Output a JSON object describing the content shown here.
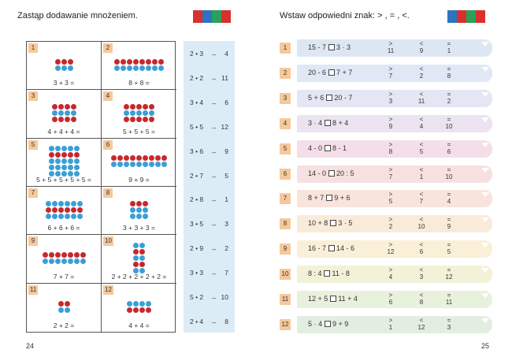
{
  "left_page": {
    "instruction": "Zastąp dodawanie mnożeniem.",
    "page_number": "24",
    "cells": [
      {
        "num": "1",
        "expr": "3 + 3 =",
        "rows": [
          "rrr",
          "bbb"
        ]
      },
      {
        "num": "2",
        "expr": "8 + 8 =",
        "rows": [
          "rrrrrrrr",
          "bbbbbbbb"
        ]
      },
      {
        "num": "3",
        "expr": "4 + 4 + 4 =",
        "rows": [
          "rrrr",
          "bbbb",
          "rrrr"
        ]
      },
      {
        "num": "4",
        "expr": "5 + 5 + 5 =",
        "rows": [
          "rrrrr",
          "bbbbb",
          "rrrrr"
        ]
      },
      {
        "num": "5",
        "expr": "5 + 5 + 5 + 5 + 5 =",
        "rows": [
          "bbbbb",
          "rrrrr",
          "bbbbb",
          "bbbbb",
          "bbbbb"
        ]
      },
      {
        "num": "6",
        "expr": "9 + 9 =",
        "rows": [
          "rrrrrrrrr",
          "bbbbbbbbb"
        ]
      },
      {
        "num": "7",
        "expr": "6 + 6 + 6 =",
        "rows": [
          "bbbbbb",
          "rrrrrr",
          "bbbbbb"
        ]
      },
      {
        "num": "8",
        "expr": "3 + 3 + 3 =",
        "rows": [
          "rrr",
          "bbb",
          "bbb"
        ]
      },
      {
        "num": "9",
        "expr": "7 + 7 =",
        "rows": [
          "rrrrrrr",
          "bbbbbbb"
        ]
      },
      {
        "num": "10",
        "expr": "2 + 2 + 2 + 2 + 2 =",
        "rows": [
          "bb",
          "rr",
          "bb",
          "rr",
          "bb"
        ]
      },
      {
        "num": "11",
        "expr": "2 + 2 =",
        "rows": [
          "rr",
          "bb"
        ]
      },
      {
        "num": "12",
        "expr": "4 + 4 =",
        "rows": [
          "bbbb",
          "rrrr"
        ]
      }
    ],
    "strip": [
      {
        "expr": "2 • 3",
        "arrow": "→",
        "value": "4"
      },
      {
        "expr": "2 • 2",
        "arrow": "→",
        "value": "11"
      },
      {
        "expr": "3 • 4",
        "arrow": "→",
        "value": "6"
      },
      {
        "expr": "5 • 5",
        "arrow": "→",
        "value": "12"
      },
      {
        "expr": "3 • 6",
        "arrow": "→",
        "value": "9"
      },
      {
        "expr": "2 • 7",
        "arrow": "→",
        "value": "5"
      },
      {
        "expr": "2 • 8",
        "arrow": "→",
        "value": "1"
      },
      {
        "expr": "3 • 5",
        "arrow": "→",
        "value": "3"
      },
      {
        "expr": "2 • 9",
        "arrow": "→",
        "value": "2"
      },
      {
        "expr": "3 • 3",
        "arrow": "→",
        "value": "7"
      },
      {
        "expr": "5 • 2",
        "arrow": "→",
        "value": "10"
      },
      {
        "expr": "2 • 4",
        "arrow": "→",
        "value": "8"
      }
    ]
  },
  "right_page": {
    "instruction": "Wstaw odpowiedni znak: > , = , <.",
    "page_number": "25",
    "rows": [
      {
        "num": "1",
        "left": "15 - 7",
        "right": "3 · 3",
        "gt": "11",
        "lt": "9",
        "eq": "1",
        "color": "#dde7f3"
      },
      {
        "num": "2",
        "left": "20 - 6",
        "right": "7 + 7",
        "gt": "7",
        "lt": "2",
        "eq": "8",
        "color": "#dfe8f4"
      },
      {
        "num": "3",
        "left": "5 + 6",
        "right": "20 - 7",
        "gt": "3",
        "lt": "11",
        "eq": "2",
        "color": "#e4e6f4"
      },
      {
        "num": "4",
        "left": "3 · 4",
        "right": "8 + 4",
        "gt": "9",
        "lt": "4",
        "eq": "10",
        "color": "#ece3f1"
      },
      {
        "num": "5",
        "left": "4 - 0",
        "right": "8 - 1",
        "gt": "8",
        "lt": "5",
        "eq": "6",
        "color": "#f4dfe8"
      },
      {
        "num": "6",
        "left": "14 - 0",
        "right": "20 : 5",
        "gt": "7",
        "lt": "1",
        "eq": "10",
        "color": "#f7e0e0"
      },
      {
        "num": "7",
        "left": "8 + 7",
        "right": "9 + 6",
        "gt": "5",
        "lt": "7",
        "eq": "4",
        "color": "#f8e4dc"
      },
      {
        "num": "8",
        "left": "10 + 8",
        "right": "3 · 5",
        "gt": "2",
        "lt": "10",
        "eq": "9",
        "color": "#faeada"
      },
      {
        "num": "9",
        "left": "16 - 7",
        "right": "14 - 6",
        "gt": "12",
        "lt": "6",
        "eq": "5",
        "color": "#faf0d8"
      },
      {
        "num": "10",
        "left": "8 : 4",
        "right": "11 - 8",
        "gt": "4",
        "lt": "3",
        "eq": "12",
        "color": "#f3f2d8"
      },
      {
        "num": "11",
        "left": "12 + 5",
        "right": "11 + 4",
        "gt": "6",
        "lt": "8",
        "eq": "11",
        "color": "#e8f1dc"
      },
      {
        "num": "12",
        "left": "5 · 4",
        "right": "9 + 9",
        "gt": "1",
        "lt": "12",
        "eq": "3",
        "color": "#e2efe0"
      }
    ],
    "symbols": {
      "gt": ">",
      "lt": "<",
      "eq": "="
    }
  },
  "colors": {
    "red_dot": "#c8282b",
    "blue_dot": "#3a9fd6",
    "strip": "#dcecf7",
    "number_tag": "#f6c89a"
  }
}
